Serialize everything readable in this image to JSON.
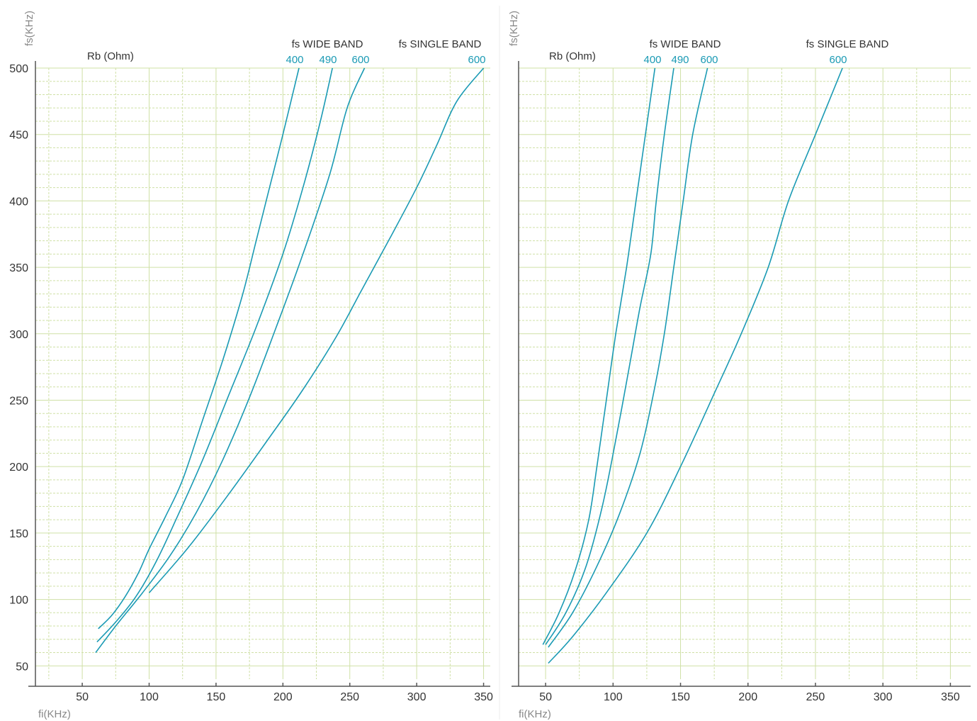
{
  "colors": {
    "curve": "#1a9ab4",
    "grid": "#cfe0a6",
    "axis": "#555555",
    "text": "#333333",
    "muted": "#888888"
  },
  "chart_data": [
    {
      "type": "line",
      "xlabel": "fi(KHz)",
      "ylabel": "fs(KHz)",
      "rb_label": "Rb (Ohm)",
      "wide_band_label": "fs WIDE BAND",
      "single_band_label": "fs SINGLE BAND",
      "xlim": [
        15,
        355
      ],
      "ylim": [
        40,
        500
      ],
      "xticks": [
        50,
        100,
        150,
        200,
        250,
        300,
        350
      ],
      "yticks": [
        50,
        100,
        150,
        200,
        250,
        300,
        350,
        400,
        450,
        500
      ],
      "grid": true,
      "series": [
        {
          "name": "400",
          "group": "wide",
          "points": [
            [
              62,
              78
            ],
            [
              72,
              88
            ],
            [
              82,
              102
            ],
            [
              92,
              120
            ],
            [
              100,
              138
            ],
            [
              112,
              162
            ],
            [
              125,
              190
            ],
            [
              140,
              235
            ],
            [
              155,
              280
            ],
            [
              170,
              330
            ],
            [
              180,
              370
            ],
            [
              190,
              410
            ],
            [
              200,
              450
            ],
            [
              212,
              500
            ]
          ]
        },
        {
          "name": "490",
          "group": "wide",
          "points": [
            [
              61,
              68
            ],
            [
              75,
              83
            ],
            [
              90,
              102
            ],
            [
              105,
              128
            ],
            [
              120,
              160
            ],
            [
              140,
              205
            ],
            [
              160,
              255
            ],
            [
              180,
              305
            ],
            [
              200,
              360
            ],
            [
              215,
              410
            ],
            [
              228,
              460
            ],
            [
              237,
              500
            ]
          ]
        },
        {
          "name": "600",
          "group": "wide",
          "points": [
            [
              60,
              60
            ],
            [
              75,
              80
            ],
            [
              95,
              105
            ],
            [
              115,
              132
            ],
            [
              135,
              165
            ],
            [
              155,
              205
            ],
            [
              175,
              252
            ],
            [
              195,
              305
            ],
            [
              215,
              360
            ],
            [
              235,
              420
            ],
            [
              248,
              470
            ],
            [
              261,
              500
            ]
          ]
        },
        {
          "name": "600",
          "group": "single",
          "points": [
            [
              100,
              105
            ],
            [
              130,
              140
            ],
            [
              160,
              180
            ],
            [
              190,
              222
            ],
            [
              215,
              258
            ],
            [
              240,
              298
            ],
            [
              260,
              335
            ],
            [
              280,
              372
            ],
            [
              300,
              410
            ],
            [
              315,
              442
            ],
            [
              330,
              475
            ],
            [
              350,
              500
            ]
          ]
        }
      ]
    },
    {
      "type": "line",
      "xlabel": "fi(KHz)",
      "ylabel": "fs(KHz)",
      "rb_label": "Rb (Ohm)",
      "wide_band_label": "fs WIDE BAND",
      "single_band_label": "fs SINGLE BAND",
      "xlim": [
        30,
        365
      ],
      "ylim": [
        40,
        500
      ],
      "xticks": [
        50,
        100,
        150,
        200,
        250,
        300,
        350
      ],
      "yticks": [
        50,
        100,
        150,
        200,
        250,
        300,
        350,
        400,
        450,
        500
      ],
      "grid": true,
      "series": [
        {
          "name": "400",
          "group": "wide",
          "points": [
            [
              48,
              66
            ],
            [
              60,
              90
            ],
            [
              72,
              122
            ],
            [
              82,
              160
            ],
            [
              88,
              200
            ],
            [
              95,
              250
            ],
            [
              102,
              300
            ],
            [
              110,
              350
            ],
            [
              117,
              400
            ],
            [
              124,
              450
            ],
            [
              131,
              500
            ]
          ]
        },
        {
          "name": "490",
          "group": "wide",
          "points": [
            [
              50,
              66
            ],
            [
              65,
              90
            ],
            [
              80,
              125
            ],
            [
              92,
              170
            ],
            [
              102,
              220
            ],
            [
              112,
              275
            ],
            [
              120,
              320
            ],
            [
              128,
              360
            ],
            [
              132,
              400
            ],
            [
              138,
              450
            ],
            [
              145,
              500
            ]
          ]
        },
        {
          "name": "600",
          "group": "wide",
          "points": [
            [
              52,
              64
            ],
            [
              70,
              90
            ],
            [
              88,
              125
            ],
            [
              105,
              165
            ],
            [
              120,
              210
            ],
            [
              130,
              255
            ],
            [
              138,
              300
            ],
            [
              145,
              350
            ],
            [
              152,
              400
            ],
            [
              159,
              450
            ],
            [
              170,
              500
            ]
          ]
        },
        {
          "name": "600",
          "group": "single",
          "points": [
            [
              52,
              52
            ],
            [
              70,
              72
            ],
            [
              95,
              105
            ],
            [
              125,
              150
            ],
            [
              150,
              200
            ],
            [
              175,
              255
            ],
            [
              195,
              300
            ],
            [
              215,
              350
            ],
            [
              230,
              400
            ],
            [
              250,
              450
            ],
            [
              270,
              500
            ]
          ]
        }
      ]
    }
  ]
}
